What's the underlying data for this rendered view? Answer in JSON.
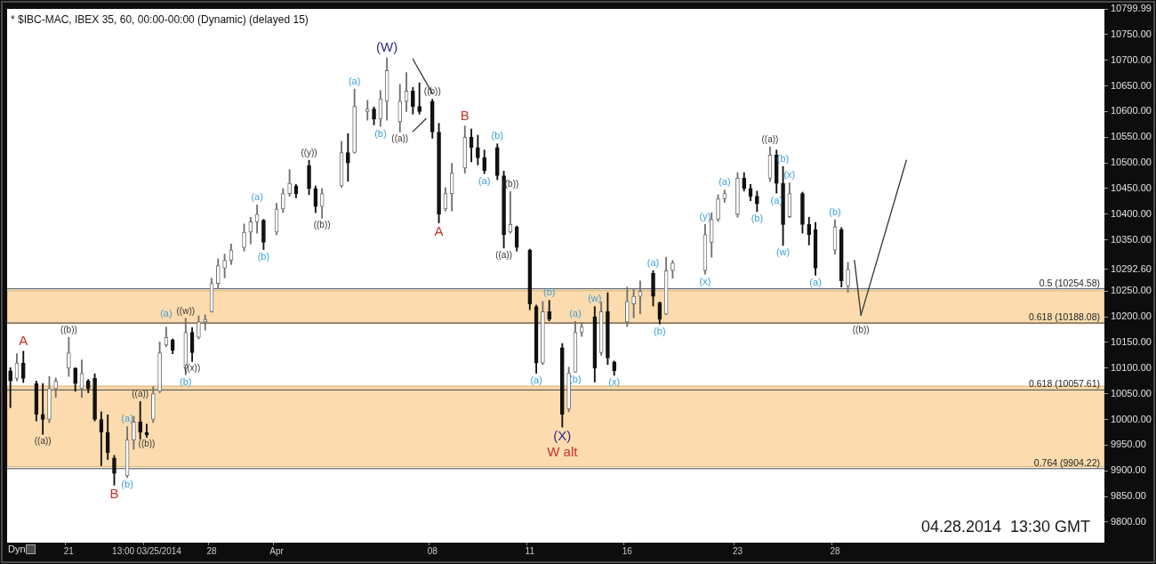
{
  "chart_data": {
    "type": "candlestick",
    "title": "* $IBC-MAC, IBEX 35, 60, 00:00-00:00 (Dynamic) (delayed 15)",
    "marker": "none",
    "categories": [
      null,
      null,
      null,
      null,
      null,
      null,
      null,
      null,
      null,
      "21",
      null,
      null,
      null,
      null,
      null,
      null,
      null,
      null,
      null,
      null,
      null,
      "13:00 03/25/2014",
      null,
      null,
      null,
      null,
      null,
      null,
      null,
      null,
      null,
      "28",
      null,
      null,
      null,
      null,
      null,
      null,
      null,
      null,
      null,
      "Apr",
      null,
      null,
      null,
      null,
      null,
      null,
      null,
      null,
      null,
      null,
      null,
      null,
      null,
      null,
      null,
      null,
      null,
      null,
      null,
      null,
      null,
      null,
      null,
      "08",
      null,
      null,
      null,
      null,
      null,
      null,
      null,
      null,
      null,
      null,
      null,
      null,
      null,
      null,
      "11",
      null,
      null,
      null,
      null,
      null,
      null,
      null,
      null,
      null,
      null,
      null,
      null,
      null,
      null,
      "16",
      null,
      null,
      null,
      null,
      null,
      null,
      null,
      null,
      null,
      null,
      null,
      null,
      null,
      null,
      null,
      null,
      "23",
      null,
      null,
      null,
      null,
      null,
      null,
      null,
      null,
      null,
      null,
      null,
      null,
      null,
      null,
      "28",
      null,
      null,
      null,
      null,
      null,
      null,
      null,
      null,
      null,
      null,
      null,
      null,
      null,
      null,
      null,
      null,
      null,
      null,
      null,
      null,
      null,
      null,
      null,
      null,
      null,
      null,
      null,
      null,
      null,
      null,
      null,
      null,
      null,
      null,
      null,
      null,
      null,
      null,
      null,
      null,
      null
    ],
    "ohlc": [
      [
        10095,
        10101,
        10023,
        10075
      ],
      [
        10080,
        10128,
        10075,
        10110
      ],
      [
        10110,
        10133,
        10072,
        10080
      ],
      null,
      [
        10070,
        10075,
        9997,
        10010
      ],
      [
        10010,
        10070,
        9971,
        10000
      ],
      [
        10000,
        10084,
        9994,
        10060
      ],
      [
        10060,
        10081,
        10043,
        10075
      ],
      null,
      [
        10100,
        10160,
        10084,
        10130
      ],
      [
        10100,
        10101,
        10055,
        10070
      ],
      [
        10060,
        10116,
        10043,
        10090
      ],
      [
        10075,
        10078,
        10052,
        10060
      ],
      [
        10080,
        10089,
        9997,
        10000
      ],
      [
        10000,
        10015,
        9910,
        9975
      ],
      [
        9975,
        10009,
        9922,
        9935
      ],
      [
        9925,
        9930,
        9872,
        9895
      ],
      null,
      [
        9890,
        9986,
        9887,
        9960
      ],
      [
        9960,
        10006,
        9942,
        9995
      ],
      [
        9995,
        10035,
        9962,
        9975
      ],
      [
        9975,
        9991,
        9965,
        9970
      ],
      [
        10000,
        10064,
        9994,
        10050
      ],
      [
        10055,
        10151,
        10052,
        10130
      ],
      [
        10145,
        10180,
        10142,
        10160
      ],
      [
        10155,
        10157,
        10128,
        10135
      ],
      null,
      [
        10100,
        10197,
        10087,
        10170
      ],
      [
        10170,
        10179,
        10113,
        10130
      ],
      [
        10160,
        10202,
        10157,
        10190
      ],
      [
        10190,
        10204,
        10174,
        10195
      ],
      [
        10210,
        10275,
        10209,
        10265
      ],
      [
        10265,
        10313,
        10255,
        10300
      ],
      [
        10295,
        10322,
        10276,
        10310
      ],
      [
        10310,
        10342,
        10302,
        10330
      ],
      null,
      [
        10335,
        10381,
        10328,
        10365
      ],
      [
        10365,
        10394,
        10342,
        10385
      ],
      [
        10385,
        10418,
        10363,
        10400
      ],
      [
        10388,
        10390,
        10331,
        10345
      ],
      null,
      [
        10365,
        10421,
        10360,
        10410
      ],
      [
        10410,
        10450,
        10403,
        10440
      ],
      [
        10440,
        10487,
        10435,
        10460
      ],
      [
        10455,
        10458,
        10432,
        10440
      ],
      null,
      [
        10495,
        10505,
        10438,
        10450
      ],
      [
        10450,
        10455,
        10403,
        10415
      ],
      [
        10415,
        10450,
        10392,
        10440
      ],
      null,
      null,
      [
        10455,
        10542,
        10452,
        10520
      ],
      [
        10520,
        10557,
        10464,
        10500
      ],
      [
        10520,
        10644,
        10519,
        10610
      ],
      null,
      [
        10600,
        10622,
        10583,
        10605
      ],
      [
        10605,
        10609,
        10574,
        10585
      ],
      [
        10585,
        10641,
        10571,
        10625
      ],
      [
        10620,
        10705,
        10583,
        10680
      ],
      null,
      [
        10580,
        10653,
        10560,
        10620
      ],
      [
        10620,
        10676,
        10600,
        10640
      ],
      [
        10640,
        10647,
        10595,
        10610
      ],
      [
        10610,
        10656,
        10595,
        10600
      ],
      null,
      [
        10620,
        10624,
        10548,
        10560
      ],
      [
        10560,
        10577,
        10383,
        10400
      ],
      [
        10410,
        10452,
        10406,
        10440
      ],
      [
        10440,
        10499,
        10406,
        10480
      ],
      null,
      [
        10490,
        10572,
        10480,
        10550
      ],
      [
        10550,
        10566,
        10502,
        10530
      ],
      [
        10530,
        10554,
        10496,
        10510
      ],
      [
        10510,
        10525,
        10479,
        10485
      ],
      null,
      [
        10530,
        10537,
        10467,
        10475
      ],
      [
        10475,
        10484,
        10334,
        10360
      ],
      [
        10365,
        10444,
        10363,
        10380
      ],
      [
        10375,
        10377,
        10328,
        10335
      ],
      null,
      [
        10330,
        10332,
        10214,
        10225
      ],
      [
        10220,
        10223,
        10090,
        10110
      ],
      [
        10110,
        10230,
        10107,
        10210
      ],
      [
        10210,
        10232,
        10192,
        10195
      ],
      null,
      [
        10140,
        10148,
        9985,
        10010
      ],
      [
        10020,
        10102,
        10015,
        10090
      ],
      [
        10092,
        10191,
        10092,
        10170
      ],
      [
        10170,
        10189,
        10162,
        10180
      ],
      null,
      [
        10200,
        10220,
        10073,
        10100
      ],
      [
        10130,
        10229,
        10125,
        10210
      ],
      [
        10210,
        10247,
        10107,
        10120
      ],
      [
        10112,
        10114,
        10086,
        10095
      ],
      null,
      [
        10190,
        10258,
        10181,
        10230
      ],
      [
        10225,
        10255,
        10198,
        10240
      ],
      [
        10240,
        10270,
        10206,
        10250
      ],
      null,
      [
        10285,
        10290,
        10221,
        10240
      ],
      [
        10228,
        10229,
        10186,
        10195
      ],
      [
        10205,
        10316,
        10204,
        10290
      ],
      [
        10290,
        10310,
        10275,
        10305
      ],
      null,
      null,
      null,
      null,
      [
        10290,
        10380,
        10283,
        10360
      ],
      [
        10345,
        10403,
        10316,
        10390
      ],
      [
        10390,
        10438,
        10386,
        10430
      ],
      [
        10430,
        10447,
        10423,
        10440
      ],
      null,
      [
        10400,
        10481,
        10394,
        10470
      ],
      [
        10470,
        10481,
        10445,
        10450
      ],
      [
        10450,
        10458,
        10426,
        10435
      ],
      [
        10435,
        10445,
        10405,
        10420
      ],
      null,
      [
        10470,
        10531,
        10464,
        10515
      ],
      [
        10515,
        10525,
        10441,
        10460
      ],
      [
        10460,
        10493,
        10339,
        10380
      ],
      [
        10395,
        10461,
        10393,
        10440
      ],
      null,
      [
        10440,
        10443,
        10363,
        10380
      ],
      [
        10380,
        10394,
        10340,
        10360
      ],
      [
        10370,
        10384,
        10281,
        10295
      ],
      null,
      null,
      [
        10330,
        10389,
        10322,
        10375
      ],
      [
        10370,
        10374,
        10258,
        10270
      ],
      [
        10260,
        10306,
        10248,
        10292.6
      ],
      null,
      null,
      null,
      null,
      null,
      null,
      null,
      null,
      null,
      null,
      null,
      null,
      null,
      null,
      null,
      null,
      null,
      null,
      null,
      null,
      null,
      null,
      null,
      null,
      null,
      null,
      null,
      null,
      null,
      null,
      null,
      null,
      null,
      null,
      null,
      null,
      null,
      null,
      null
    ],
    "colors": [
      "#111111",
      "#707070",
      "#111111",
      null,
      "#111111",
      "#111111",
      "#707070",
      "#707070",
      null,
      "#707070",
      "#111111",
      "#707070",
      "#111111",
      "#111111",
      "#111111",
      "#111111",
      "#111111",
      null,
      "#707070",
      "#707070",
      "#111111",
      "#111111",
      "#707070",
      "#707070",
      "#707070",
      "#111111",
      null,
      "#707070",
      "#111111",
      "#707070",
      "#707070",
      "#707070",
      "#707070",
      "#707070",
      "#707070",
      null,
      "#707070",
      "#707070",
      "#707070",
      "#111111",
      null,
      "#707070",
      "#707070",
      "#707070",
      "#111111",
      null,
      "#111111",
      "#111111",
      "#707070",
      null,
      null,
      "#707070",
      "#111111",
      "#707070",
      null,
      "#707070",
      "#111111",
      "#707070",
      "#707070",
      null,
      "#707070",
      "#707070",
      "#111111",
      "#111111",
      null,
      "#111111",
      "#111111",
      "#707070",
      "#707070",
      null,
      "#707070",
      "#111111",
      "#111111",
      "#111111",
      null,
      "#111111",
      "#111111",
      "#707070",
      "#111111",
      null,
      "#111111",
      "#111111",
      "#707070",
      "#111111",
      null,
      "#111111",
      "#707070",
      "#707070",
      "#707070",
      null,
      "#111111",
      "#707070",
      "#111111",
      "#111111",
      null,
      "#707070",
      "#707070",
      "#707070",
      null,
      "#111111",
      "#111111",
      "#707070",
      "#707070",
      null,
      null,
      null,
      null,
      "#707070",
      "#707070",
      "#707070",
      "#707070",
      null,
      "#707070",
      "#111111",
      "#111111",
      "#111111",
      null,
      "#707070",
      "#111111",
      "#111111",
      "#707070",
      null,
      "#111111",
      "#111111",
      "#111111",
      null,
      null,
      "#707070",
      "#111111",
      "#707070",
      null,
      null,
      null,
      null,
      null,
      null,
      null,
      null,
      null,
      null,
      null,
      null,
      null,
      null,
      null,
      null,
      null,
      null,
      null,
      null,
      null,
      null,
      null,
      null,
      null,
      null,
      null,
      null,
      null,
      null,
      null,
      null,
      null,
      null,
      null,
      null,
      null,
      null,
      null
    ],
    "series": [
      {
        "type": "line",
        "color": "#333333",
        "values": [
          null,
          null,
          null,
          null,
          null,
          null,
          null,
          null,
          null,
          null,
          null,
          null,
          null,
          null,
          null,
          null,
          null,
          null,
          null,
          null,
          null,
          null,
          null,
          null,
          null,
          null,
          null,
          null,
          null,
          null,
          null,
          null,
          null,
          null,
          null,
          null,
          null,
          null,
          null,
          null,
          null,
          null,
          null,
          null,
          null,
          null,
          null,
          null,
          null,
          null,
          null,
          null,
          null,
          null,
          null,
          null,
          null,
          null,
          null,
          null,
          null,
          null,
          null,
          null,
          null,
          null,
          null,
          null,
          null,
          null,
          null,
          null,
          null,
          null,
          null,
          null,
          null,
          null,
          null,
          null,
          null,
          null,
          null,
          null,
          null,
          null,
          null,
          null,
          null,
          null,
          null,
          null,
          null,
          null,
          null,
          null,
          null,
          null,
          null,
          null,
          null,
          null,
          null,
          null,
          null,
          null,
          null,
          null,
          null,
          null,
          null,
          null,
          null,
          null,
          null,
          null,
          null,
          null,
          null,
          null,
          null,
          null,
          null,
          null,
          null,
          null,
          null,
          null,
          null,
          null,
          10310,
          10203,
          null,
          null,
          null,
          null,
          null,
          null,
          null,
          null,
          null,
          null,
          null,
          null,
          null,
          null,
          null,
          null,
          null,
          null,
          null,
          null,
          null,
          null,
          null,
          null,
          null,
          null,
          null,
          null,
          null,
          null,
          null,
          null,
          null,
          null,
          null,
          null,
          null
        ]
      },
      {
        "type": "line",
        "color": "#333333",
        "values": [
          null,
          null,
          null,
          null,
          null,
          null,
          null,
          null,
          null,
          null,
          null,
          null,
          null,
          null,
          null,
          null,
          null,
          null,
          null,
          null,
          null,
          null,
          null,
          null,
          null,
          null,
          null,
          null,
          null,
          null,
          null,
          null,
          null,
          null,
          null,
          null,
          null,
          null,
          null,
          null,
          null,
          null,
          null,
          null,
          null,
          null,
          null,
          null,
          null,
          null,
          null,
          null,
          null,
          null,
          null,
          null,
          null,
          null,
          null,
          null,
          null,
          null,
          null,
          null,
          null,
          null,
          null,
          null,
          null,
          null,
          null,
          null,
          null,
          null,
          null,
          null,
          null,
          null,
          null,
          null,
          null,
          null,
          null,
          null,
          null,
          null,
          null,
          null,
          null,
          null,
          null,
          null,
          null,
          null,
          null,
          null,
          null,
          null,
          null,
          null,
          null,
          null,
          null,
          null,
          null,
          null,
          null,
          null,
          null,
          null,
          null,
          null,
          null,
          null,
          null,
          null,
          null,
          null,
          null,
          null,
          null,
          null,
          null,
          null,
          null,
          null,
          null,
          null,
          null,
          null,
          null,
          10203,
          null,
          null,
          null,
          null,
          null,
          null,
          10505,
          null,
          null,
          null,
          null,
          null,
          null,
          null,
          null,
          null,
          null,
          null,
          null,
          null,
          null,
          null,
          null,
          null,
          null,
          null,
          null,
          null,
          null,
          null,
          null,
          null,
          null,
          null,
          null,
          null,
          null
        ]
      },
      {
        "type": "line",
        "color": "#333333",
        "values": [
          null,
          null,
          null,
          null,
          null,
          null,
          null,
          null,
          null,
          null,
          null,
          null,
          null,
          null,
          null,
          null,
          null,
          null,
          null,
          null,
          null,
          null,
          null,
          null,
          null,
          null,
          null,
          null,
          null,
          null,
          null,
          null,
          null,
          null,
          null,
          null,
          null,
          null,
          null,
          null,
          null,
          null,
          null,
          null,
          null,
          null,
          null,
          null,
          null,
          null,
          null,
          null,
          null,
          null,
          null,
          null,
          null,
          null,
          null,
          null,
          null,
          null,
          10702,
          null,
          null,
          10635,
          null,
          null,
          null,
          null,
          null,
          null,
          null,
          null,
          null,
          null,
          null,
          null,
          null,
          null,
          null,
          null,
          null,
          null,
          null,
          null,
          null,
          null,
          null,
          null,
          null,
          null,
          null,
          null,
          null,
          null,
          null,
          null,
          null,
          null,
          null,
          null,
          null,
          null,
          null,
          null,
          null,
          null,
          null,
          null,
          null,
          null,
          null,
          null,
          null,
          null,
          null,
          null,
          null,
          null,
          null,
          null,
          null,
          null,
          null,
          null,
          null,
          null,
          null,
          null,
          null,
          null,
          null,
          null,
          null,
          null,
          null,
          null,
          null,
          null,
          null,
          null,
          null,
          null,
          null,
          null,
          null,
          null,
          null,
          null,
          null,
          null,
          null,
          null,
          null,
          null,
          null,
          null,
          null,
          null,
          null,
          null,
          null,
          null,
          null,
          null,
          null,
          null,
          null
        ]
      },
      {
        "type": "line",
        "color": "#333333",
        "values": [
          null,
          null,
          null,
          null,
          null,
          null,
          null,
          null,
          null,
          null,
          null,
          null,
          null,
          null,
          null,
          null,
          null,
          null,
          null,
          null,
          null,
          null,
          null,
          null,
          null,
          null,
          null,
          null,
          null,
          null,
          null,
          null,
          null,
          null,
          null,
          null,
          null,
          null,
          null,
          null,
          null,
          null,
          null,
          null,
          null,
          null,
          null,
          null,
          null,
          null,
          null,
          null,
          null,
          null,
          null,
          null,
          null,
          null,
          null,
          null,
          null,
          null,
          10561,
          null,
          10586,
          null,
          null,
          null,
          null,
          null,
          null,
          null,
          null,
          null,
          null,
          null,
          null,
          null,
          null,
          null,
          null,
          null,
          null,
          null,
          null,
          null,
          null,
          null,
          null,
          null,
          null,
          null,
          null,
          null,
          null,
          null,
          null,
          null,
          null,
          null,
          null,
          null,
          null,
          null,
          null,
          null,
          null,
          null,
          null,
          null,
          null,
          null,
          null,
          null,
          null,
          null,
          null,
          null,
          null,
          null,
          null,
          null,
          null,
          null,
          null,
          null,
          null,
          null,
          null,
          null,
          null,
          null,
          null,
          null,
          null,
          null,
          null,
          null,
          null,
          null,
          null,
          null,
          null,
          null,
          null,
          null,
          null,
          null,
          null,
          null,
          null,
          null,
          null,
          null,
          null,
          null,
          null,
          null,
          null,
          null,
          null,
          null,
          null,
          null,
          null,
          null,
          null,
          null,
          null
        ]
      }
    ],
    "ylim": [
      9760,
      10799.99
    ],
    "yticks": [
      {
        "value": 9800,
        "label": "9800.00"
      },
      {
        "value": 9850,
        "label": "9850.00"
      },
      {
        "value": 9900,
        "label": "9900.00"
      },
      {
        "value": 9950,
        "label": "9950.00"
      },
      {
        "value": 10000,
        "label": "10000.00"
      },
      {
        "value": 10050,
        "label": "10050.00"
      },
      {
        "value": 10100,
        "label": "10100.00"
      },
      {
        "value": 10150,
        "label": "10150.00"
      },
      {
        "value": 10200,
        "label": "10200.00"
      },
      {
        "value": 10250,
        "label": "10250.00"
      },
      {
        "value": 10292.6,
        "label": "10292.60"
      },
      {
        "value": 10350,
        "label": "10350.00"
      },
      {
        "value": 10400,
        "label": "10400.00"
      },
      {
        "value": 10450,
        "label": "10450.00"
      },
      {
        "value": 10500,
        "label": "10500.00"
      },
      {
        "value": 10550,
        "label": "10550.00"
      },
      {
        "value": 10600,
        "label": "10600.00"
      },
      {
        "value": 10650,
        "label": "10650.00"
      },
      {
        "value": 10700,
        "label": "10700.00"
      },
      {
        "value": 10750,
        "label": "10750.00"
      },
      10799.99
    ],
    "ref_lines": [
      {
        "axis": "y",
        "value": 10254.58,
        "label": "0.5 (10254.58)",
        "color": "#444444"
      },
      {
        "axis": "y",
        "value": 10188.08,
        "label": "0.618 (10188.08)",
        "color": "#444444"
      },
      {
        "axis": "y",
        "value": 10057.61,
        "label": "0.618 (10057.61)",
        "color": "#444444"
      },
      {
        "axis": "y",
        "value": 9904.22,
        "label": "0.764 (9904.22)",
        "color": "#444444"
      }
    ],
    "bands": [
      {
        "axis": "y",
        "from": 10187,
        "to": 10251,
        "color": "#fcdcae"
      },
      {
        "axis": "y",
        "from": 9908,
        "to": 10065,
        "color": "#fcdcae"
      }
    ],
    "annotations": [
      {
        "text": "A",
        "y": 10133
      },
      {
        "text": "((a))",
        "y": 9971
      },
      {
        "text": "((b))",
        "y": 10160
      },
      {
        "text": "B",
        "y": 9872
      },
      {
        "text": "(b)",
        "y": 9887
      },
      {
        "text": "(a)",
        "y": 9986
      },
      {
        "text": "((a))",
        "y": 10035
      },
      {
        "text": "((b))",
        "y": 9965
      },
      {
        "text": "(a)",
        "y": 10180
      },
      {
        "text": "((w))",
        "y": 10197
      },
      {
        "text": "(b)",
        "y": 10087
      },
      {
        "text": "((x))",
        "y": 10113
      },
      {
        "text": "(a)",
        "y": 10418
      },
      {
        "text": "(b)",
        "y": 10331
      },
      {
        "text": "((y))",
        "y": 10505
      },
      {
        "text": "((b))",
        "y": 10392
      },
      {
        "text": "(a)",
        "y": 10644
      },
      {
        "text": "(b)",
        "y": 10571
      },
      {
        "text": "(W)",
        "y": 10705
      },
      {
        "text": "((a))",
        "y": 10560
      },
      {
        "text": "((b))",
        "y": 10624
      },
      {
        "text": "A",
        "y": 10383
      },
      {
        "text": "B",
        "y": 10572
      },
      {
        "text": "(a)",
        "y": 10479
      },
      {
        "text": "(b)",
        "y": 10537
      },
      {
        "text": "((a))",
        "y": 10334
      },
      {
        "text": "((b))",
        "y": 10444
      },
      {
        "text": "(b)",
        "y": 10232
      },
      {
        "text": "(a)",
        "y": 10090
      },
      {
        "text": "(a)",
        "y": 10191
      },
      {
        "text": "(b)",
        "y": 10092
      },
      {
        "text": "(w)",
        "y": 10220
      },
      {
        "text": "(x)",
        "y": 10086
      },
      {
        "text": "(X)",
        "y": 9985
      },
      {
        "text": "W alt",
        "y": 9985
      },
      {
        "text": "(a)",
        "y": 10290
      },
      {
        "text": "(b)",
        "y": 10186
      },
      {
        "text": "(y)",
        "y": 10380
      },
      {
        "text": "(x)",
        "y": 10283
      },
      {
        "text": "(a)",
        "y": 10447
      },
      {
        "text": "(b)",
        "y": 10405
      },
      {
        "text": "((a))",
        "y": 10531
      },
      {
        "text": "(a)",
        "y": 10441
      },
      {
        "text": "(b)",
        "y": 10493
      },
      {
        "text": "(x)",
        "y": 10461
      },
      {
        "text": "(w)",
        "y": 10339
      },
      {
        "text": "(a)",
        "y": 10281
      },
      {
        "text": "(b)",
        "y": 10389
      },
      {
        "text": "((b))",
        "y": 10203
      },
      "04.28.2014  13:30 GMT",
      "Dyn"
    ]
  }
}
